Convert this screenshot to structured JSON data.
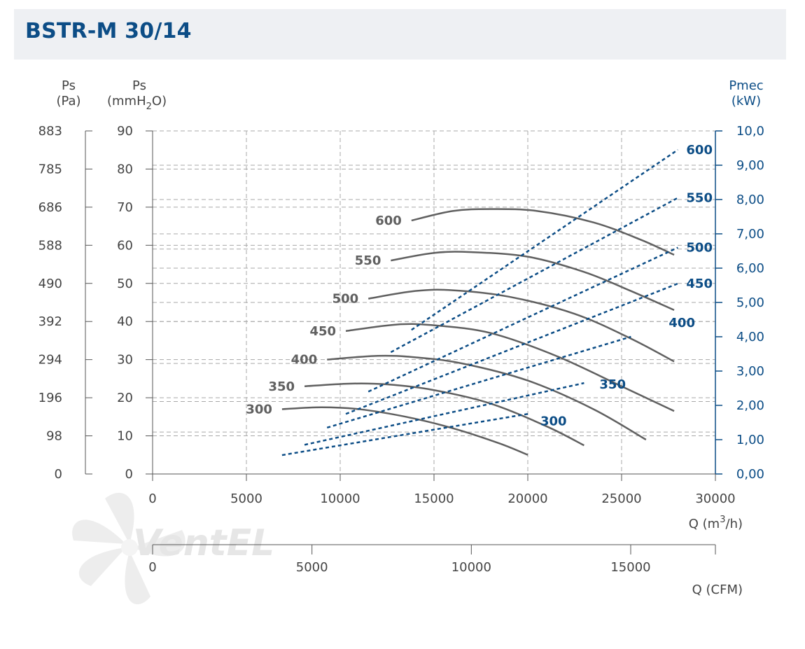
{
  "header": {
    "title": "BSTR-M 30/14"
  },
  "axes": {
    "pa_label": "Ps",
    "pa_unit": "(Pa)",
    "mmh2o_label": "Ps",
    "mmh2o_unit_pre": "(mmH",
    "mmh2o_unit_sub": "2",
    "mmh2o_unit_post": "O)",
    "kw_label": "Pmec",
    "kw_unit": "(kW)",
    "q_m3h_label_pre": "Q (m",
    "q_m3h_label_sup": "3",
    "q_m3h_label_post": "/h)",
    "q_cfm_label": "Q (CFM)"
  },
  "watermark": {
    "text": "VentEL"
  },
  "colors": {
    "title": "#0c4d86",
    "pressure_curve": "#606060",
    "power_curve": "#0c4d86",
    "grid": "#a8a8a8",
    "header_bg": "#eef0f3"
  },
  "chart_data": {
    "type": "line",
    "xlabel": "Q (m3/h)",
    "xlim": [
      0,
      30000
    ],
    "x_ticks": [
      "0",
      "5000",
      "10000",
      "15000",
      "20000",
      "25000",
      "30000"
    ],
    "cfm_ticks": [
      "0",
      "5000",
      "10000",
      "15000"
    ],
    "y_left_label": "Ps (mmH2O)",
    "ylim": [
      0,
      90
    ],
    "y_ticks": [
      "0",
      "10",
      "20",
      "30",
      "40",
      "50",
      "60",
      "70",
      "80",
      "90"
    ],
    "pa_ticks": [
      "0",
      "98",
      "196",
      "294",
      "392",
      "490",
      "588",
      "686",
      "785",
      "883"
    ],
    "y_right_label": "Pmec (kW)",
    "y_right_lim": [
      0,
      10
    ],
    "y_right_ticks": [
      "0,00",
      "1,00",
      "2,00",
      "3,00",
      "4,00",
      "5,00",
      "6,00",
      "7,00",
      "8,00",
      "9,00",
      "10,0"
    ],
    "minor_dashed_y": [
      11,
      19,
      29,
      40,
      45,
      54,
      59,
      63,
      72,
      81
    ],
    "pressure_series": [
      {
        "name": "300",
        "x": [
          6900,
          9000,
          11000,
          13500,
          16000,
          18500,
          20000
        ],
        "y": [
          17.0,
          17.5,
          17.0,
          15.0,
          12.0,
          8.0,
          5.0
        ]
      },
      {
        "name": "350",
        "x": [
          8100,
          10500,
          12500,
          15000,
          18000,
          21000,
          23000
        ],
        "y": [
          23.0,
          23.7,
          23.5,
          22.0,
          18.5,
          12.5,
          7.5
        ]
      },
      {
        "name": "400",
        "x": [
          9300,
          12000,
          14000,
          16500,
          20000,
          23500,
          26300
        ],
        "y": [
          30.0,
          31.0,
          30.6,
          29.0,
          24.5,
          17.0,
          9.0
        ]
      },
      {
        "name": "450",
        "x": [
          10300,
          13000,
          15000,
          18000,
          21500,
          25000,
          27800
        ],
        "y": [
          37.5,
          39.2,
          39.0,
          37.0,
          31.0,
          23.0,
          16.5
        ]
      },
      {
        "name": "500",
        "x": [
          11500,
          14000,
          16000,
          19000,
          22500,
          25500,
          27800
        ],
        "y": [
          46.0,
          48.0,
          48.2,
          46.5,
          42.0,
          35.5,
          29.5
        ]
      },
      {
        "name": "550",
        "x": [
          12700,
          15000,
          17000,
          20000,
          23000,
          25500,
          27800
        ],
        "y": [
          56.0,
          58.0,
          58.2,
          57.0,
          53.0,
          48.0,
          43.0
        ]
      },
      {
        "name": "600",
        "x": [
          13800,
          16000,
          18000,
          20500,
          23500,
          26000,
          27800
        ],
        "y": [
          66.5,
          69.0,
          69.5,
          69.0,
          66.0,
          61.5,
          57.5
        ]
      }
    ],
    "power_series": [
      {
        "name": "300",
        "x": [
          6900,
          20000
        ],
        "y": [
          0.55,
          1.75
        ]
      },
      {
        "name": "350",
        "x": [
          8100,
          23000
        ],
        "y": [
          0.85,
          2.65
        ]
      },
      {
        "name": "400",
        "x": [
          9300,
          25500
        ],
        "y": [
          1.35,
          4.0
        ]
      },
      {
        "name": "450",
        "x": [
          10300,
          28000
        ],
        "y": [
          1.75,
          5.55
        ]
      },
      {
        "name": "500",
        "x": [
          11500,
          28000
        ],
        "y": [
          2.4,
          6.6
        ]
      },
      {
        "name": "550",
        "x": [
          12700,
          28000
        ],
        "y": [
          3.55,
          8.05
        ]
      },
      {
        "name": "600",
        "x": [
          13800,
          28000
        ],
        "y": [
          4.2,
          9.45
        ]
      }
    ],
    "pressure_labels": [
      "300",
      "350",
      "400",
      "450",
      "500",
      "550",
      "600"
    ],
    "power_labels": [
      "300",
      "350",
      "400",
      "450",
      "500",
      "550",
      "600"
    ]
  }
}
